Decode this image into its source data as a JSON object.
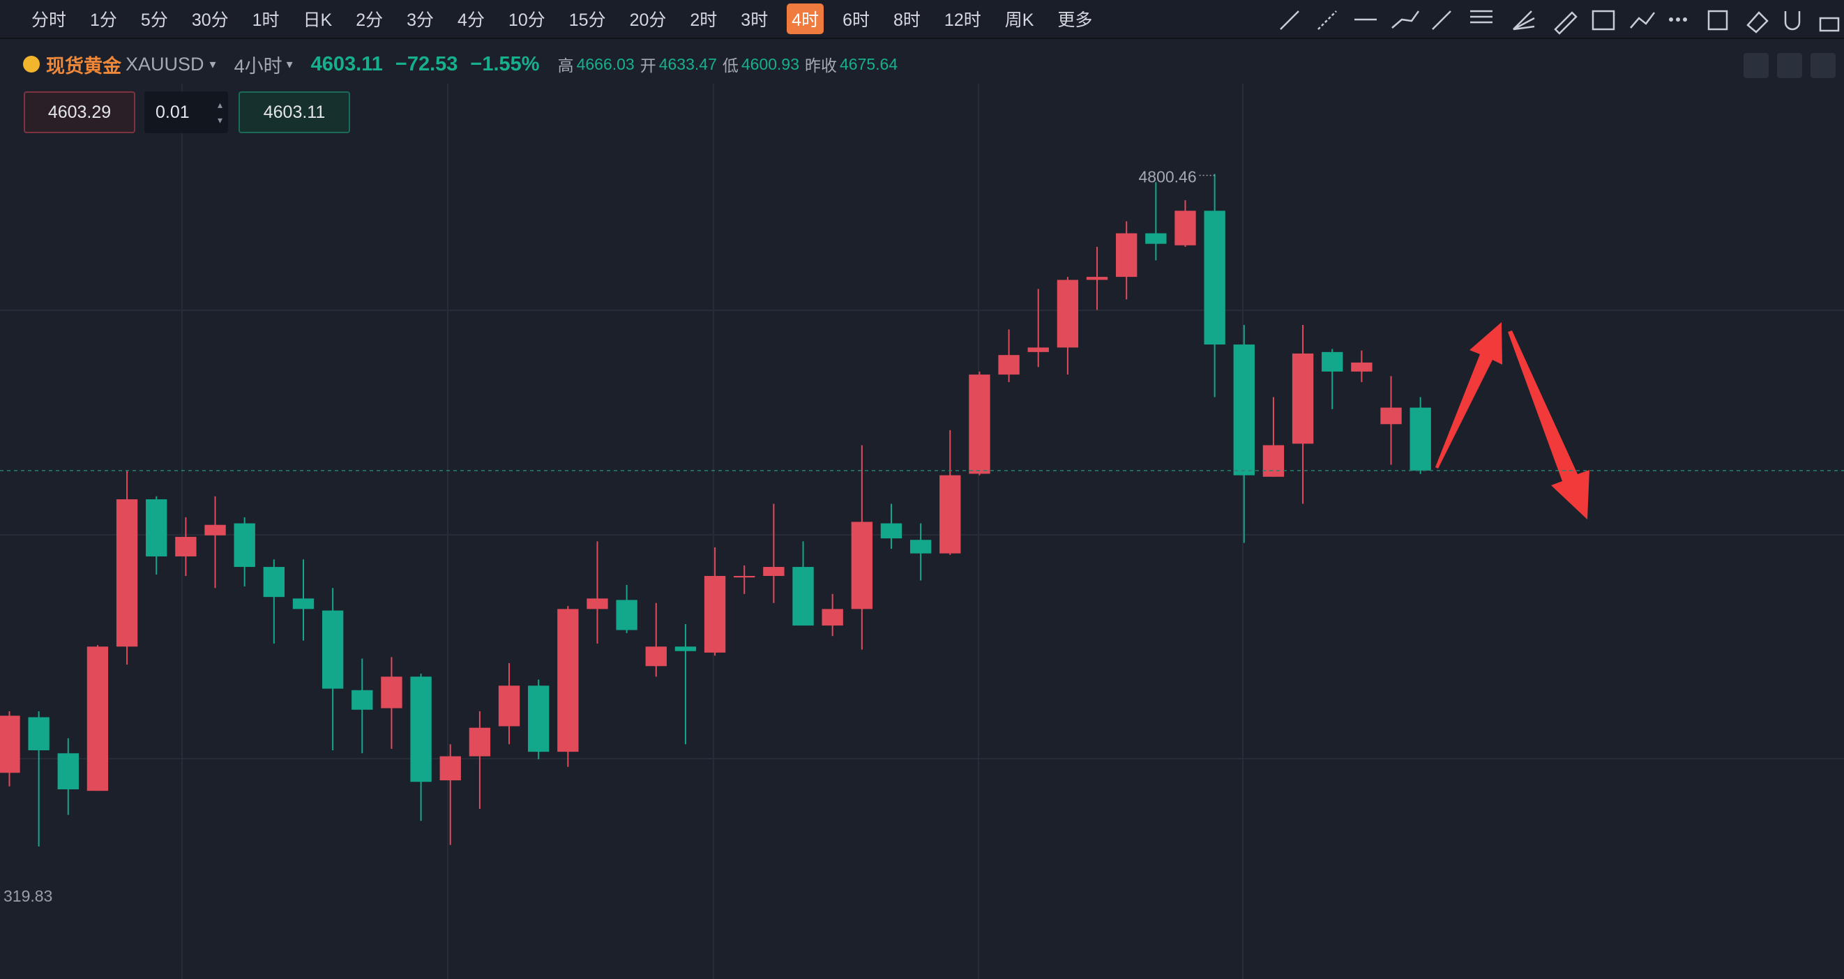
{
  "toolbar": {
    "timeframes": [
      "分时",
      "1分",
      "5分",
      "30分",
      "1时",
      "日K",
      "2分",
      "3分",
      "4分",
      "10分",
      "15分",
      "20分",
      "2时",
      "3时",
      "4时",
      "6时",
      "8时",
      "12时",
      "周K",
      "更多"
    ],
    "active_index": 14
  },
  "symbol": {
    "name": "现货黄金",
    "code": "XAUUSD",
    "period": "4小时",
    "price": "4603.11",
    "change": "−72.53",
    "change_pct": "−1.55%",
    "stats": [
      {
        "label": "高",
        "value": "4666.03"
      },
      {
        "label": "开",
        "value": "4633.47"
      },
      {
        "label": "低",
        "value": "4600.93"
      },
      {
        "label": "昨收",
        "value": "4675.64"
      }
    ]
  },
  "order": {
    "sell": "4603.29",
    "qty": "0.01",
    "buy": "4603.11"
  },
  "chart": {
    "type": "candlestick",
    "up_color": "#e14b5a",
    "down_color": "#13a88b",
    "last_price": 4603.11,
    "high_label": "4800.46",
    "axis_label": "319.83",
    "open": [
      4402,
      4439,
      4415,
      4390,
      4486,
      4584,
      4546,
      4560,
      4568,
      4539,
      4518,
      4510,
      4457,
      4445,
      4466,
      4397,
      4413,
      4433,
      4460,
      4416,
      4511,
      4517,
      4473,
      4486,
      4482,
      4532,
      4533,
      4539,
      4500,
      4511,
      4568,
      4557,
      4548,
      4601,
      4667,
      4682,
      4685,
      4730,
      4732,
      4761,
      4753,
      4776,
      4687,
      4599,
      4621,
      4682,
      4669,
      4634,
      4645
    ],
    "high": [
      4443,
      4443,
      4425,
      4487,
      4603,
      4586,
      4572,
      4586,
      4572,
      4544,
      4544,
      4525,
      4478,
      4479,
      4468,
      4421,
      4443,
      4475,
      4464,
      4513,
      4556,
      4527,
      4515,
      4501,
      4552,
      4540,
      4581,
      4556,
      4521,
      4620,
      4581,
      4568,
      4630,
      4669,
      4697,
      4724,
      4732,
      4752,
      4769,
      4795,
      4783,
      4800.46,
      4700,
      4652,
      4700,
      4684,
      4683,
      4666,
      4652
    ],
    "low": [
      4393,
      4353,
      4374,
      4390,
      4474,
      4534,
      4533,
      4525,
      4526,
      4488,
      4490,
      4417,
      4415,
      4418,
      4370,
      4354,
      4378,
      4421,
      4411,
      4406,
      4488,
      4495,
      4466,
      4421,
      4480,
      4521,
      4515,
      4500,
      4493,
      4484,
      4551,
      4530,
      4547,
      4600,
      4662,
      4672,
      4667,
      4710,
      4717,
      4743,
      4752,
      4652,
      4555,
      4599,
      4581,
      4644,
      4662,
      4607,
      4600.93
    ],
    "close": [
      4440,
      4417,
      4391,
      4486,
      4584,
      4546,
      4559,
      4567,
      4539,
      4519,
      4511,
      4458,
      4444,
      4466,
      4396,
      4413,
      4432,
      4460,
      4416,
      4511,
      4518,
      4497,
      4486,
      4483,
      4533,
      4533,
      4539,
      4500,
      4511,
      4569,
      4558,
      4548,
      4600,
      4667,
      4680,
      4685,
      4730,
      4732,
      4761,
      4754,
      4776,
      4687,
      4600,
      4620,
      4681,
      4669,
      4675,
      4645,
      4603.11
    ]
  }
}
